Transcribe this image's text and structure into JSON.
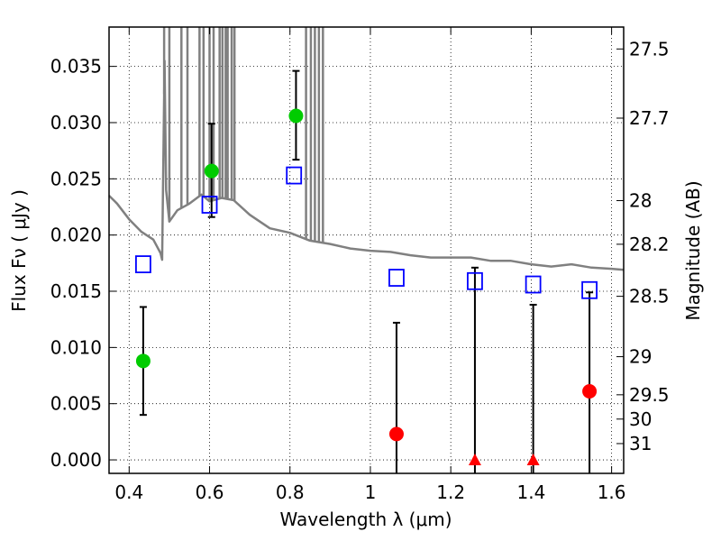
{
  "chart_data": {
    "type": "scatter",
    "xlabel": "Wavelength  λ (μm)",
    "ylabel": "Flux  Fν  ( μJy )",
    "y2label": "Magnitude (AB)",
    "xlim": [
      0.35,
      1.63
    ],
    "ylim": [
      -0.0012,
      0.0385
    ],
    "grid": true,
    "x_ticks": [
      0.4,
      0.6,
      0.8,
      1.0,
      1.2,
      1.4,
      1.6
    ],
    "x_tick_labels": [
      "0.4",
      "0.6",
      "0.8",
      "1",
      "1.2",
      "1.4",
      "1.6"
    ],
    "y_ticks": [
      0.0,
      0.005,
      0.01,
      0.015,
      0.02,
      0.025,
      0.03,
      0.035
    ],
    "y_tick_labels": [
      "0.000",
      "0.005",
      "0.010",
      "0.015",
      "0.020",
      "0.025",
      "0.030",
      "0.035"
    ],
    "right_ticks": [
      {
        "label": "27.5",
        "flux": 0.03655
      },
      {
        "label": "27.7",
        "flux": 0.0304
      },
      {
        "label": "28",
        "flux": 0.02306
      },
      {
        "label": "28.2",
        "flux": 0.01918
      },
      {
        "label": "28.5",
        "flux": 0.01455
      },
      {
        "label": "29",
        "flux": 0.00918
      },
      {
        "label": "29.5",
        "flux": 0.00579
      },
      {
        "label": "30",
        "flux": 0.00363
      },
      {
        "label": "31",
        "flux": 0.00145
      }
    ],
    "model_spectrum": {
      "color": "#808080",
      "points": [
        [
          0.35,
          0.0235
        ],
        [
          0.37,
          0.0228
        ],
        [
          0.4,
          0.0214
        ],
        [
          0.43,
          0.0203
        ],
        [
          0.46,
          0.0196
        ],
        [
          0.478,
          0.0184
        ],
        [
          0.482,
          0.0178
        ],
        [
          0.488,
          0.0355
        ],
        [
          0.492,
          0.024
        ],
        [
          0.5,
          0.0212
        ],
        [
          0.52,
          0.0222
        ],
        [
          0.55,
          0.0228
        ],
        [
          0.58,
          0.0236
        ],
        [
          0.6,
          0.023
        ],
        [
          0.63,
          0.0233
        ],
        [
          0.66,
          0.0231
        ],
        [
          0.7,
          0.0218
        ],
        [
          0.75,
          0.0206
        ],
        [
          0.8,
          0.0202
        ],
        [
          0.85,
          0.0195
        ],
        [
          0.9,
          0.0192
        ],
        [
          0.95,
          0.0188
        ],
        [
          1.0,
          0.0186
        ],
        [
          1.05,
          0.0185
        ],
        [
          1.1,
          0.0182
        ],
        [
          1.15,
          0.018
        ],
        [
          1.2,
          0.018
        ],
        [
          1.25,
          0.018
        ],
        [
          1.3,
          0.0177
        ],
        [
          1.35,
          0.0177
        ],
        [
          1.4,
          0.0174
        ],
        [
          1.45,
          0.0172
        ],
        [
          1.5,
          0.0174
        ],
        [
          1.55,
          0.0171
        ],
        [
          1.6,
          0.017
        ],
        [
          1.63,
          0.0169
        ]
      ],
      "spikes": [
        [
          0.487,
          0.039
        ],
        [
          0.5,
          0.039
        ],
        [
          0.53,
          0.039
        ],
        [
          0.545,
          0.039
        ],
        [
          0.575,
          0.039
        ],
        [
          0.585,
          0.039
        ],
        [
          0.6,
          0.039
        ],
        [
          0.61,
          0.039
        ],
        [
          0.625,
          0.039
        ],
        [
          0.632,
          0.039
        ],
        [
          0.64,
          0.039
        ],
        [
          0.645,
          0.039
        ],
        [
          0.655,
          0.039
        ],
        [
          0.662,
          0.039
        ],
        [
          0.84,
          0.039
        ],
        [
          0.852,
          0.039
        ],
        [
          0.862,
          0.039
        ],
        [
          0.872,
          0.039
        ],
        [
          0.882,
          0.039
        ]
      ]
    },
    "series": [
      {
        "name": "",
        "marker": "square-open",
        "color": "#0000ff",
        "x": [
          0.435,
          0.6,
          0.81,
          1.065,
          1.26,
          1.405,
          1.545
        ],
        "y": [
          0.0174,
          0.0227,
          0.0253,
          0.0162,
          0.0159,
          0.0156,
          0.0151
        ]
      },
      {
        "name": "",
        "marker": "circle",
        "color": "#00cc00",
        "x": [
          0.435,
          0.605,
          0.815
        ],
        "y": [
          0.0088,
          0.0257,
          0.0306
        ],
        "err_low": [
          0.004,
          0.0216,
          0.0267
        ],
        "err_high": [
          0.0136,
          0.0299,
          0.0346
        ]
      },
      {
        "name": "",
        "marker": "circle",
        "color": "#ff0000",
        "x": [
          1.065,
          1.545
        ],
        "y": [
          0.0023,
          0.0061
        ],
        "err_low": [
          -0.0012,
          -0.0012
        ],
        "err_high": [
          0.0122,
          0.0149
        ]
      },
      {
        "name": "",
        "marker": "triangle",
        "color": "#ff0000",
        "x": [
          1.26,
          1.405
        ],
        "y": [
          0.0,
          0.0
        ],
        "err_low": [
          -0.0012,
          -0.0012
        ],
        "err_high": [
          0.0171,
          0.0138
        ]
      }
    ]
  }
}
